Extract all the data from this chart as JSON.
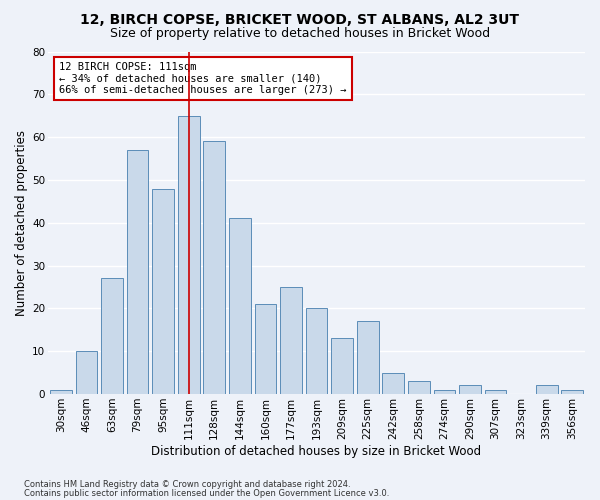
{
  "title1": "12, BIRCH COPSE, BRICKET WOOD, ST ALBANS, AL2 3UT",
  "title2": "Size of property relative to detached houses in Bricket Wood",
  "xlabel": "Distribution of detached houses by size in Bricket Wood",
  "ylabel": "Number of detached properties",
  "categories": [
    "30sqm",
    "46sqm",
    "63sqm",
    "79sqm",
    "95sqm",
    "111sqm",
    "128sqm",
    "144sqm",
    "160sqm",
    "177sqm",
    "193sqm",
    "209sqm",
    "225sqm",
    "242sqm",
    "258sqm",
    "274sqm",
    "290sqm",
    "307sqm",
    "323sqm",
    "339sqm",
    "356sqm"
  ],
  "values": [
    1,
    10,
    27,
    57,
    48,
    65,
    59,
    41,
    21,
    25,
    20,
    13,
    17,
    5,
    3,
    1,
    2,
    1,
    0,
    2,
    1
  ],
  "bar_color": "#c9d9ea",
  "bar_edge_color": "#5b8db8",
  "highlight_bar_index": 5,
  "highlight_line_color": "#cc0000",
  "ylim": [
    0,
    80
  ],
  "yticks": [
    0,
    10,
    20,
    30,
    40,
    50,
    60,
    70,
    80
  ],
  "annotation_text": "12 BIRCH COPSE: 111sqm\n← 34% of detached houses are smaller (140)\n66% of semi-detached houses are larger (273) →",
  "annotation_box_color": "#ffffff",
  "annotation_box_edge_color": "#cc0000",
  "footer1": "Contains HM Land Registry data © Crown copyright and database right 2024.",
  "footer2": "Contains public sector information licensed under the Open Government Licence v3.0.",
  "background_color": "#eef2f9",
  "grid_color": "#ffffff",
  "title_fontsize": 10,
  "subtitle_fontsize": 9,
  "tick_fontsize": 7.5,
  "axis_label_fontsize": 8.5,
  "footer_fontsize": 6
}
